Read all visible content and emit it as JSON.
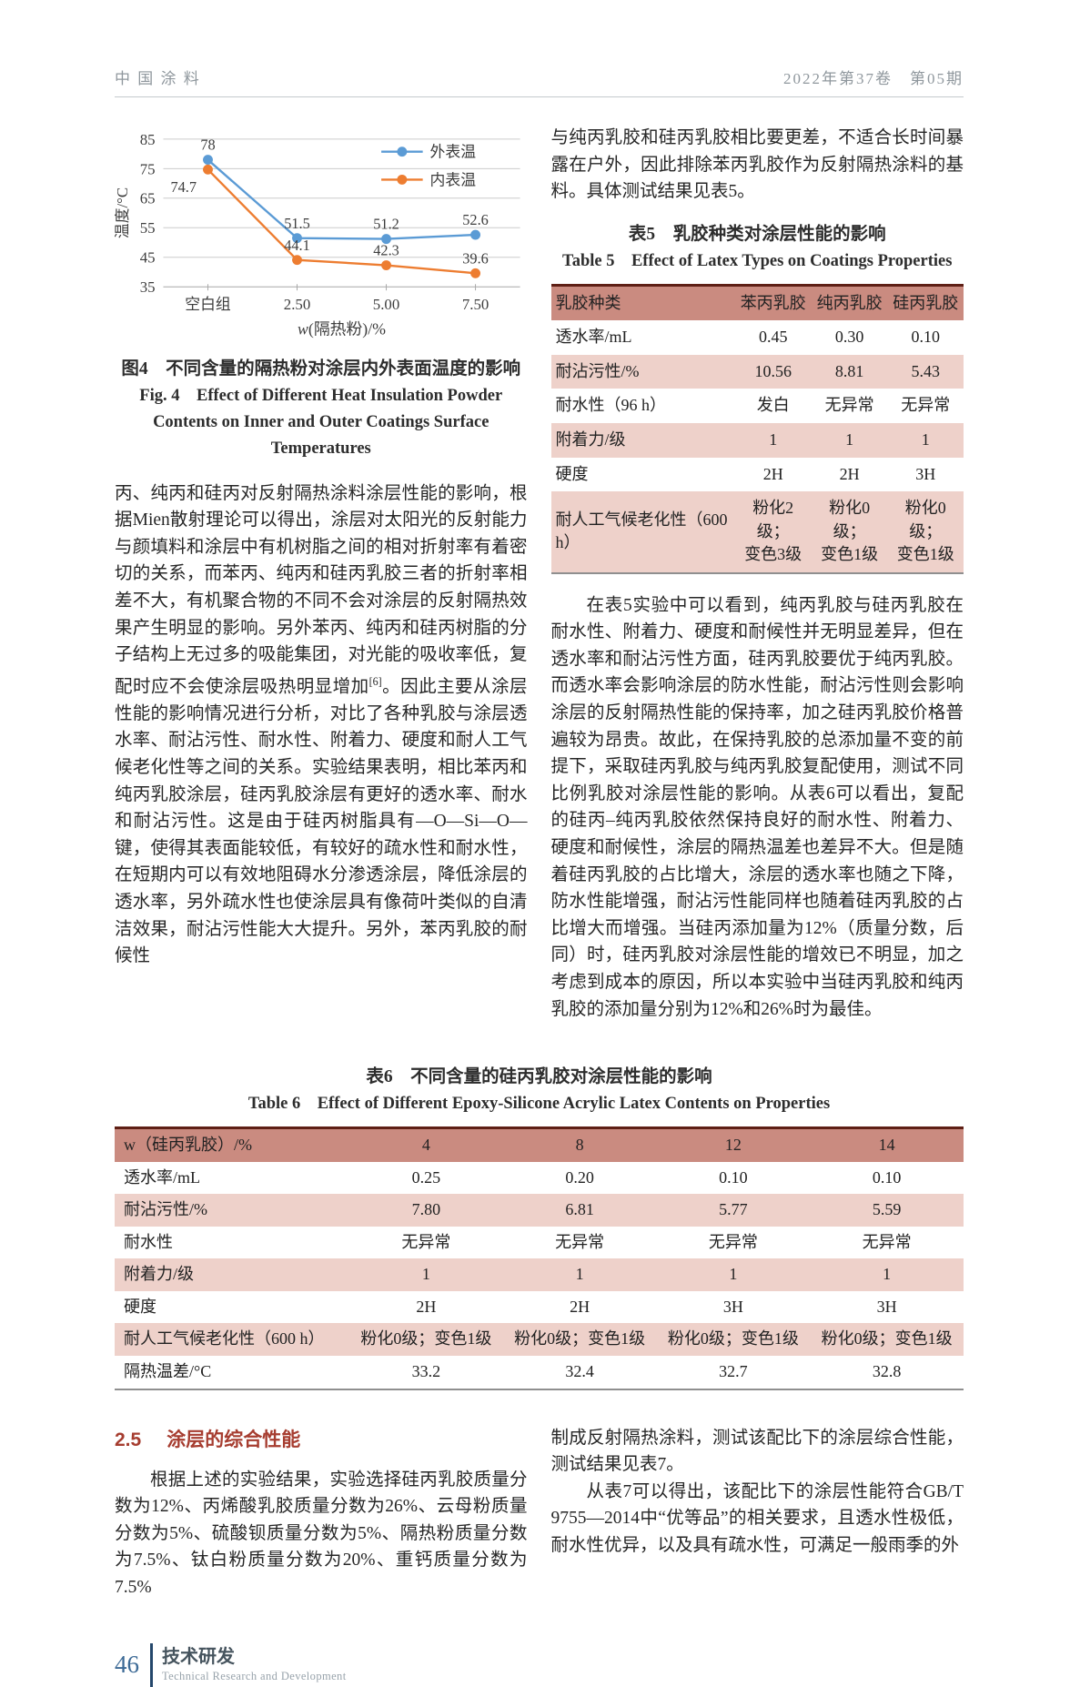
{
  "header": {
    "left": "中 国 涂 料",
    "right": "2022年第37卷　第05期"
  },
  "chart_data": {
    "type": "line",
    "categories": [
      "空白组",
      "2.50",
      "5.00",
      "7.50"
    ],
    "series": [
      {
        "name": "外表温",
        "values": [
          78,
          51.5,
          51.2,
          52.6
        ],
        "color": "#5b9bd5"
      },
      {
        "name": "内表温",
        "values": [
          74.7,
          44.1,
          42.3,
          39.6
        ],
        "color": "#ed7d31"
      }
    ],
    "title": "",
    "xlabel": "w(隔热粉)/%",
    "ylabel": "温度/°C",
    "ylim": [
      35,
      85
    ],
    "yticks": [
      35,
      45,
      55,
      65,
      75,
      85
    ],
    "grid": true,
    "legend_position": "top-right"
  },
  "figure4": {
    "caption_cn": "图4　不同含量的隔热粉对涂层内外表面温度的影响",
    "caption_en": "Fig. 4　Effect of Different Heat Insulation Powder Contents on Inner and Outer Coatings Surface Temperatures"
  },
  "table5": {
    "caption_cn": "表5　乳胶种类对涂层性能的影响",
    "caption_en": "Table 5　Effect of Latex Types on Coatings Properties",
    "headers": [
      "乳胶种类",
      "苯丙乳胶",
      "纯丙乳胶",
      "硅丙乳胶"
    ],
    "rows": [
      [
        "透水率/mL",
        "0.45",
        "0.30",
        "0.10"
      ],
      [
        "耐沾污性/%",
        "10.56",
        "8.81",
        "5.43"
      ],
      [
        "耐水性（96 h）",
        "发白",
        "无异常",
        "无异常"
      ],
      [
        "附着力/级",
        "1",
        "1",
        "1"
      ],
      [
        "硬度",
        "2H",
        "2H",
        "3H"
      ],
      [
        "耐人工气候老化性（600 h）",
        "粉化2级；\n变色3级",
        "粉化0级；\n变色1级",
        "粉化0级；\n变色1级"
      ]
    ]
  },
  "table6": {
    "caption_cn": "表6　不同含量的硅丙乳胶对涂层性能的影响",
    "caption_en": "Table 6　Effect of Different Epoxy-Silicone Acrylic Latex Contents on Properties",
    "headers": [
      "w（硅丙乳胶）/%",
      "4",
      "8",
      "12",
      "14"
    ],
    "rows": [
      [
        "透水率/mL",
        "0.25",
        "0.20",
        "0.10",
        "0.10"
      ],
      [
        "耐沾污性/%",
        "7.80",
        "6.81",
        "5.77",
        "5.59"
      ],
      [
        "耐水性",
        "无异常",
        "无异常",
        "无异常",
        "无异常"
      ],
      [
        "附着力/级",
        "1",
        "1",
        "1",
        "1"
      ],
      [
        "硬度",
        "2H",
        "2H",
        "3H",
        "3H"
      ],
      [
        "耐人工气候老化性（600 h）",
        "粉化0级；变色1级",
        "粉化0级；变色1级",
        "粉化0级；变色1级",
        "粉化0级；变色1级"
      ],
      [
        "隔热温差/°C",
        "33.2",
        "32.4",
        "32.7",
        "32.8"
      ]
    ]
  },
  "paragraphs": {
    "left_top_a": "丙、纯丙和硅丙对反射隔热涂料涂层性能的影响，根据Mien散射理论可以得出，涂层对太阳光的反射能力与颜填料和涂层中有机树脂之间的相对折射率有着密切的关系，而苯丙、纯丙和硅丙乳胶三者的折射率相差不大，有机聚合物的不同不会对涂层的反射隔热效果产生明显的影响。另外苯丙、纯丙和硅丙树脂的分子结构上无过多的吸能集团，对光能的吸收率低，复配时应不会使涂层吸热明显增加",
    "left_top_sup": "[6]",
    "left_top_b": "。因此主要从涂层性能的影响情况进行分析，对比了各种乳胶与涂层透水率、耐沾污性、耐水性、附着力、硬度和耐人工气候老化性等之间的关系。实验结果表明，相比苯丙和纯丙乳胶涂层，硅丙乳胶涂层有更好的透水率、耐水和耐沾污性。这是由于硅丙树脂具有—O—Si—O—键，使得其表面能较低，有较好的疏水性和耐水性，在短期内可以有效地阻碍水分渗透涂层，降低涂层的透水率，另外疏水性也使涂层具有像荷叶类似的自清洁效果，耐沾污性能大大提升。另外，苯丙乳胶的耐候性",
    "right_top": "与纯丙乳胶和硅丙乳胶相比要更差，不适合长时间暴露在户外，因此排除苯丙乳胶作为反射隔热涂料的基料。具体测试结果见表5。",
    "right_mid": "在表5实验中可以看到，纯丙乳胶与硅丙乳胶在耐水性、附着力、硬度和耐候性并无明显差异，但在透水率和耐沾污性方面，硅丙乳胶要优于纯丙乳胶。而透水率会影响涂层的防水性能，耐沾污性则会影响涂层的反射隔热性能的保持率，加之硅丙乳胶价格普遍较为昂贵。故此，在保持乳胶的总添加量不变的前提下，采取硅丙乳胶与纯丙乳胶复配使用，测试不同比例乳胶对涂层性能的影响。从表6可以看出，复配的硅丙–纯丙乳胶依然保持良好的耐水性、附着力、硬度和耐候性，涂层的隔热温差也差异不大。但是随着硅丙乳胶的占比增大，涂层的透水率也随之下降，防水性能增强，耐沾污性能同样也随着硅丙乳胶的占比增大而增强。当硅丙添加量为12%（质量分数，后同）时，硅丙乳胶对涂层性能的增效已不明显，加之考虑到成本的原因，所以本实验中当硅丙乳胶和纯丙乳胶的添加量分别为12%和26%时为最佳。",
    "left_bottom": "根据上述的实验结果，实验选择硅丙乳胶质量分数为12%、丙烯酸乳胶质量分数为26%、云母粉质量分数为5%、硫酸钡质量分数为5%、隔热粉质量分数为7.5%、钛白粉质量分数为20%、重钙质量分数为7.5%",
    "right_bottom_p1": "制成反射隔热涂料，测试该配比下的涂层综合性能，测试结果见表7。",
    "right_bottom_p2": "从表7可以得出，该配比下的涂层性能符合GB/T 9755—2014中“优等品”的相关要求，且透水性极低，耐水性优异，以及具有疏水性，可满足一般雨季的外"
  },
  "section25": {
    "number": "2.5",
    "title": "涂层的综合性能"
  },
  "footer": {
    "page_number": "46",
    "section_cn": "技术研发",
    "section_en": "Technical Research and Development"
  },
  "colors": {
    "table_header_bg": "#ca8b80",
    "table_stripe_bg": "#eed1ca",
    "table_top_border": "#5e1f15",
    "section_heading": "#a63d30",
    "series_outer": "#5b9bd5",
    "series_inner": "#ed7d31",
    "footer_accent": "#3c6a96"
  }
}
